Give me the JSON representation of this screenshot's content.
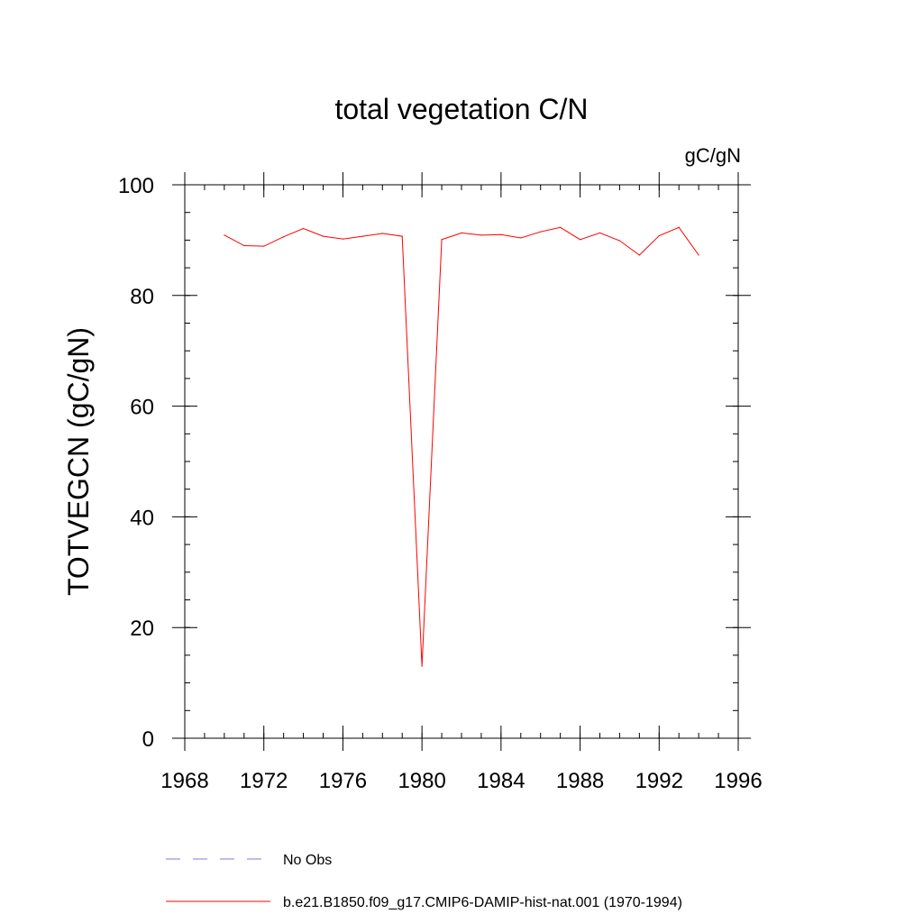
{
  "chart_data": {
    "type": "line",
    "title": "total vegetation C/N",
    "units": "gC/gN",
    "ylabel": "TOTVEGCN  (gC/gN)",
    "xlabel": "",
    "xlim": [
      1968,
      1996
    ],
    "ylim": [
      0,
      100
    ],
    "x_ticks": [
      1968,
      1972,
      1976,
      1980,
      1984,
      1988,
      1992,
      1996
    ],
    "y_ticks": [
      0,
      20,
      40,
      60,
      80,
      100
    ],
    "x_minor_step": 1,
    "y_minor_step": 5,
    "grid": false,
    "legend_position": "bottom",
    "legend": [
      {
        "label": "No Obs",
        "color": "#7b7bd6",
        "dash": "dashed"
      },
      {
        "label": "b.e21.B1850.f09_g17.CMIP6-DAMIP-hist-nat.001 (1970-1994)",
        "color": "#ff0000",
        "dash": "solid"
      }
    ],
    "series": [
      {
        "name": "b.e21.B1850.f09_g17.CMIP6-DAMIP-hist-nat.001 (1970-1994)",
        "color": "#ff0000",
        "x": [
          1970,
          1971,
          1972,
          1973,
          1974,
          1975,
          1976,
          1977,
          1978,
          1979,
          1980,
          1981,
          1982,
          1983,
          1984,
          1985,
          1986,
          1987,
          1988,
          1989,
          1990,
          1991,
          1992,
          1993,
          1994
        ],
        "values": [
          90.9,
          89.0,
          88.9,
          90.6,
          92.1,
          90.7,
          90.2,
          90.7,
          91.2,
          90.7,
          13.0,
          90.1,
          91.3,
          90.9,
          91.0,
          90.4,
          91.5,
          92.3,
          90.1,
          91.3,
          89.9,
          87.3,
          90.8,
          92.3,
          87.3
        ]
      }
    ]
  }
}
